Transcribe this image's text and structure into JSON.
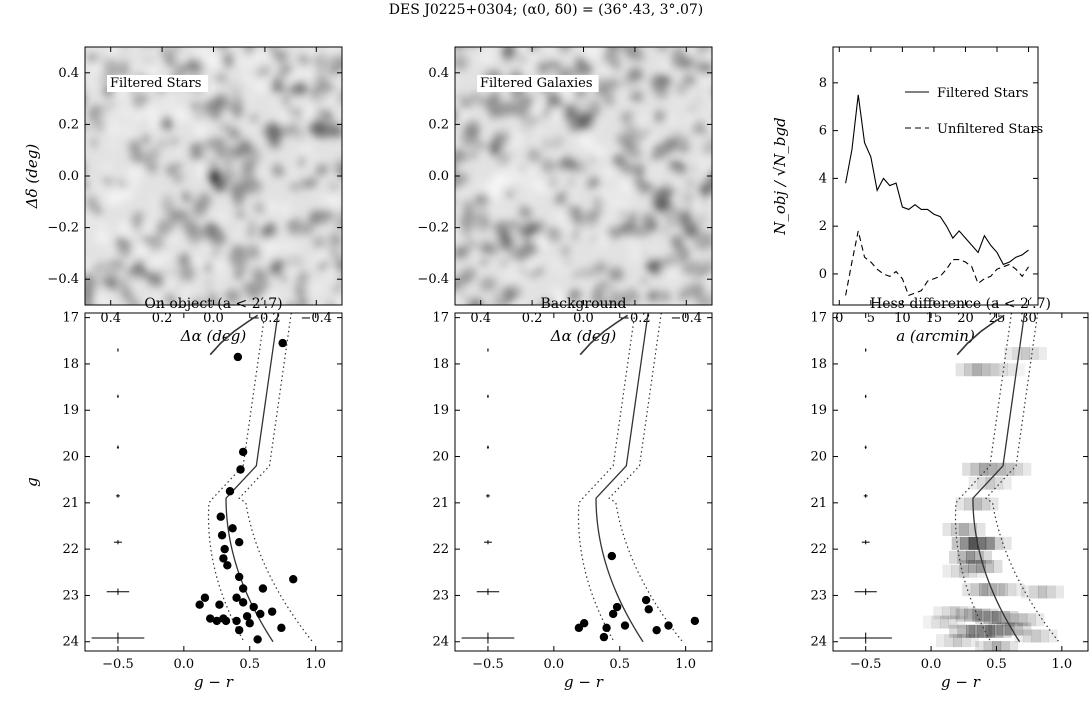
{
  "figure_title": "DES J0225+0304;  (α0, δ0) = (36°.43, 3°.07)",
  "chart_data": [
    {
      "type": "heatmap",
      "panel": "top-left",
      "annotation": "Filtered Stars",
      "xlabel": "Δα (deg)",
      "ylabel": "Δδ (deg)",
      "xlim": [
        0.5,
        -0.5
      ],
      "ylim": [
        -0.5,
        0.5
      ],
      "xticks": [
        "0.4",
        "0.2",
        "0.0",
        "−0.2",
        "−0.4"
      ],
      "yticks": [
        "0.4",
        "0.2",
        "0.0",
        "−0.2",
        "−0.4"
      ],
      "colormap": "grayscale",
      "overdensity_center": [
        0.0,
        0.0
      ]
    },
    {
      "type": "heatmap",
      "panel": "top-middle",
      "annotation": "Filtered Galaxies",
      "xlabel": "Δα (deg)",
      "ylabel": "",
      "xlim": [
        0.5,
        -0.5
      ],
      "ylim": [
        -0.5,
        0.5
      ],
      "xticks": [
        "0.4",
        "0.2",
        "0.0",
        "−0.2",
        "−0.4"
      ],
      "yticks": [
        "0.4",
        "0.2",
        "0.0",
        "−0.2",
        "−0.4"
      ],
      "colormap": "grayscale"
    },
    {
      "type": "line",
      "panel": "top-right",
      "xlabel": "a (arcmin)",
      "ylabel": "N_obj / √N_bgd",
      "xlim": [
        -1,
        31.5
      ],
      "ylim": [
        -1.3,
        9.5
      ],
      "xticks": [
        "0",
        "5",
        "10",
        "15",
        "20",
        "25",
        "30"
      ],
      "yticks": [
        "0",
        "2",
        "4",
        "6",
        "8"
      ],
      "legend_position": "top-right",
      "series": [
        {
          "name": "Filtered Stars",
          "style": "solid",
          "x": [
            1,
            2,
            3,
            4,
            5,
            6,
            7,
            8,
            9,
            10,
            11,
            12,
            13,
            14,
            15,
            16,
            17,
            18,
            19,
            20,
            21,
            22,
            23,
            24,
            25,
            26,
            27,
            28,
            29,
            30
          ],
          "y": [
            3.8,
            5.2,
            7.5,
            5.5,
            4.9,
            3.5,
            4.0,
            3.7,
            3.8,
            2.8,
            2.7,
            2.9,
            2.7,
            2.7,
            2.5,
            2.4,
            2.0,
            1.5,
            1.8,
            1.5,
            1.2,
            0.9,
            1.6,
            1.2,
            0.9,
            0.4,
            0.5,
            0.7,
            0.8,
            1.0
          ]
        },
        {
          "name": "Unfiltered Stars",
          "style": "dashed",
          "x": [
            1,
            2,
            3,
            4,
            5,
            6,
            7,
            8,
            9,
            10,
            11,
            12,
            13,
            14,
            15,
            16,
            17,
            18,
            19,
            20,
            21,
            22,
            23,
            24,
            25,
            26,
            27,
            28,
            29,
            30
          ],
          "y": [
            -0.9,
            0.5,
            1.8,
            0.7,
            0.5,
            0.2,
            0.0,
            -0.1,
            0.1,
            -0.2,
            -0.9,
            -0.8,
            -0.7,
            -0.3,
            -0.2,
            -0.1,
            0.2,
            0.6,
            0.6,
            0.5,
            0.3,
            -0.4,
            -0.2,
            -0.1,
            0.2,
            0.3,
            0.4,
            0.2,
            -0.1,
            0.3
          ]
        }
      ]
    },
    {
      "type": "scatter",
      "panel": "bottom-left",
      "title": "On object (a < 2′.7)",
      "xlabel": "g − r",
      "ylabel": "g",
      "xlim": [
        -0.75,
        1.2
      ],
      "ylim": [
        24.2,
        16.9
      ],
      "xticks": [
        "−0.5",
        "0.0",
        "0.5",
        "1.0"
      ],
      "yticks": [
        "17",
        "18",
        "19",
        "20",
        "21",
        "22",
        "23",
        "24"
      ],
      "points": [
        [
          0.41,
          17.85
        ],
        [
          0.75,
          17.55
        ],
        [
          0.45,
          19.9
        ],
        [
          0.43,
          20.28
        ],
        [
          0.35,
          20.75
        ],
        [
          0.28,
          21.3
        ],
        [
          0.37,
          21.55
        ],
        [
          0.42,
          21.85
        ],
        [
          0.29,
          21.7
        ],
        [
          0.31,
          22.0
        ],
        [
          0.3,
          22.2
        ],
        [
          0.33,
          22.35
        ],
        [
          0.42,
          22.6
        ],
        [
          0.45,
          22.85
        ],
        [
          0.6,
          22.85
        ],
        [
          0.83,
          22.65
        ],
        [
          0.12,
          23.2
        ],
        [
          0.16,
          23.05
        ],
        [
          0.27,
          23.2
        ],
        [
          0.4,
          23.05
        ],
        [
          0.45,
          23.15
        ],
        [
          0.53,
          23.25
        ],
        [
          0.48,
          23.45
        ],
        [
          0.58,
          23.4
        ],
        [
          0.67,
          23.35
        ],
        [
          0.2,
          23.5
        ],
        [
          0.25,
          23.55
        ],
        [
          0.3,
          23.5
        ],
        [
          0.32,
          23.55
        ],
        [
          0.4,
          23.55
        ],
        [
          0.42,
          23.75
        ],
        [
          0.5,
          23.6
        ],
        [
          0.74,
          23.7
        ],
        [
          0.56,
          23.95
        ]
      ]
    },
    {
      "type": "scatter",
      "panel": "bottom-middle",
      "title": "Background",
      "xlabel": "g − r",
      "ylabel": "",
      "xlim": [
        -0.75,
        1.2
      ],
      "ylim": [
        24.2,
        16.9
      ],
      "xticks": [
        "−0.5",
        "0.0",
        "0.5",
        "1.0"
      ],
      "yticks": [
        "17",
        "18",
        "19",
        "20",
        "21",
        "22",
        "23",
        "24"
      ],
      "points": [
        [
          0.44,
          22.15
        ],
        [
          0.48,
          23.25
        ],
        [
          0.45,
          23.4
        ],
        [
          0.7,
          23.1
        ],
        [
          0.72,
          23.3
        ],
        [
          0.19,
          23.7
        ],
        [
          0.23,
          23.6
        ],
        [
          0.4,
          23.7
        ],
        [
          0.54,
          23.65
        ],
        [
          0.78,
          23.75
        ],
        [
          0.87,
          23.65
        ],
        [
          1.07,
          23.55
        ],
        [
          0.38,
          23.9
        ]
      ]
    },
    {
      "type": "heatmap",
      "panel": "bottom-right",
      "title": "Hess difference (a < 2′.7)",
      "xlabel": "g − r",
      "ylabel": "",
      "xlim": [
        -0.75,
        1.2
      ],
      "ylim": [
        24.2,
        16.9
      ],
      "xticks": [
        "−0.5",
        "0.0",
        "0.5",
        "1.0"
      ],
      "yticks": [
        "17",
        "18",
        "19",
        "20",
        "21",
        "22",
        "23",
        "24"
      ],
      "colormap": "grayscale"
    }
  ]
}
